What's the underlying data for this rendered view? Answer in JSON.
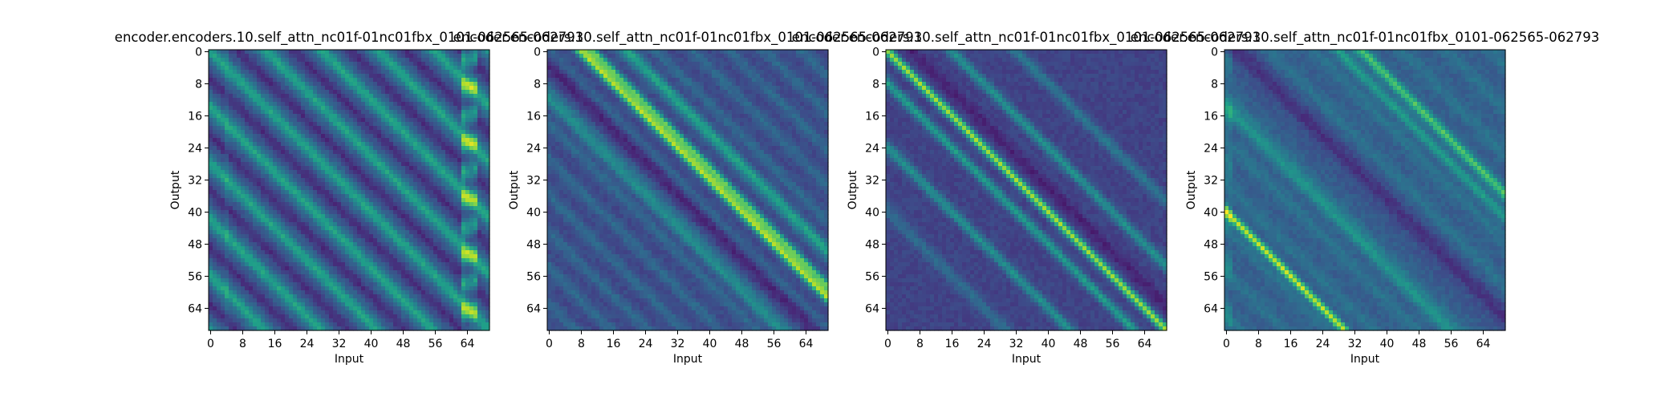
{
  "chart_data": [
    {
      "type": "heatmap",
      "title": "encoder.encoders.10.self_attn_nc01f-01nc01fbx_0101-062565-062793",
      "xlabel": "Input",
      "ylabel": "Output",
      "xlim": [
        0,
        70
      ],
      "ylim": [
        70,
        0
      ],
      "x_ticks": [
        "0",
        "8",
        "16",
        "24",
        "32",
        "40",
        "48",
        "56",
        "64"
      ],
      "y_ticks": [
        "0",
        "8",
        "16",
        "24",
        "32",
        "40",
        "48",
        "56",
        "64"
      ],
      "colormap": "viridis",
      "pattern": {
        "head": 0,
        "bands": [
          0,
          14,
          28,
          42
        ],
        "bright_columns": [
          64
        ]
      }
    },
    {
      "type": "heatmap",
      "title": "encoder.encoders.10.self_attn_nc01f-01nc01fbx_0101-062565-062793",
      "xlabel": "Input",
      "ylabel": "Output",
      "xlim": [
        0,
        70
      ],
      "ylim": [
        70,
        0
      ],
      "x_ticks": [
        "0",
        "8",
        "16",
        "24",
        "32",
        "40",
        "48",
        "56",
        "64"
      ],
      "y_ticks": [
        "0",
        "8",
        "16",
        "24",
        "32",
        "40",
        "48",
        "56",
        "64"
      ],
      "colormap": "viridis",
      "pattern": {
        "head": 1,
        "bands": [
          8,
          11,
          20
        ],
        "bright_columns": []
      }
    },
    {
      "type": "heatmap",
      "title": "encoder.encoders.10.self_attn_nc01f-01nc01fbx_0101-062565-062793",
      "xlabel": "Input",
      "ylabel": "Output",
      "xlim": [
        0,
        70
      ],
      "ylim": [
        70,
        0
      ],
      "x_ticks": [
        "0",
        "8",
        "16",
        "24",
        "32",
        "40",
        "48",
        "56",
        "64"
      ],
      "y_ticks": [
        "0",
        "8",
        "16",
        "24",
        "32",
        "40",
        "48",
        "56",
        "64"
      ],
      "colormap": "viridis",
      "pattern": {
        "head": 2,
        "bands": [
          0,
          -8,
          -16,
          16
        ],
        "bright_columns": []
      }
    },
    {
      "type": "heatmap",
      "title": "encoder.encoders.10.self_attn_nc01f-01nc01fbx_0101-062565-062793",
      "xlabel": "Input",
      "ylabel": "Output",
      "xlim": [
        0,
        70
      ],
      "ylim": [
        70,
        0
      ],
      "x_ticks": [
        "0",
        "8",
        "16",
        "24",
        "32",
        "40",
        "48",
        "56",
        "64"
      ],
      "y_ticks": [
        "0",
        "8",
        "16",
        "24",
        "32",
        "40",
        "48",
        "56",
        "64"
      ],
      "colormap": "viridis",
      "pattern": {
        "head": 3,
        "bands": [
          -40,
          34,
          28
        ],
        "bright_columns": []
      }
    }
  ]
}
